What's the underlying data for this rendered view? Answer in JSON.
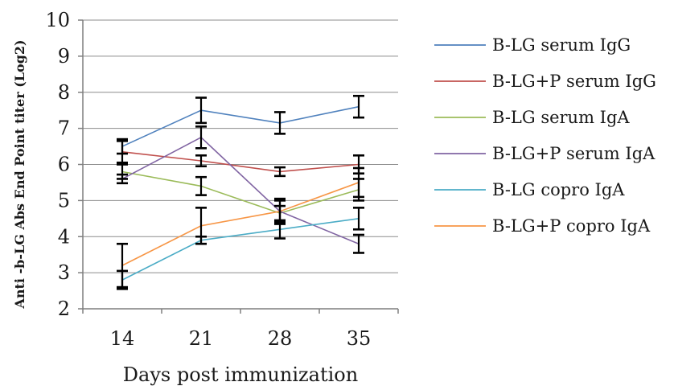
{
  "chart_data": {
    "type": "line",
    "xlabel": "Days post immunization",
    "ylabel": "Anti -b-LG Abs End Point titer (Log2)",
    "categories": [
      "14",
      "21",
      "28",
      "35"
    ],
    "ylim": [
      2,
      10
    ],
    "yticks": [
      "2",
      "3",
      "4",
      "5",
      "6",
      "7",
      "8",
      "9",
      "10"
    ],
    "grid": "horizontal",
    "legend_position": "right",
    "series": [
      {
        "name": "B-LG serum IgG",
        "color": "#4f81bd",
        "values": [
          6.5,
          7.5,
          7.15,
          7.6
        ],
        "errors": [
          0.2,
          0.35,
          0.3,
          0.3
        ]
      },
      {
        "name": "B-LG+P serum IgG",
        "color": "#c0504d",
        "values": [
          6.35,
          6.1,
          5.8,
          6.0
        ],
        "errors": [
          0.3,
          0.15,
          0.12,
          0.25
        ]
      },
      {
        "name": "B-LG serum IgA",
        "color": "#9bbb59",
        "values": [
          5.8,
          5.4,
          4.65,
          5.3
        ],
        "errors": [
          0.2,
          0.25,
          0.2,
          0.3
        ]
      },
      {
        "name": "B-LG+P serum IgA",
        "color": "#8064a2",
        "values": [
          5.6,
          6.75,
          4.7,
          3.8
        ],
        "errors": [
          0.12,
          0.3,
          0.35,
          0.25
        ]
      },
      {
        "name": "B-LG copro IgA",
        "color": "#4bacc6",
        "values": [
          2.8,
          3.9,
          4.2,
          4.5
        ],
        "errors": [
          0.25,
          0.1,
          0.25,
          0.3
        ]
      },
      {
        "name": "B-LG+P copro IgA",
        "color": "#f79646",
        "values": [
          3.2,
          4.3,
          4.7,
          5.5
        ],
        "errors": [
          0.6,
          0.5,
          0.3,
          0.4
        ]
      }
    ]
  }
}
